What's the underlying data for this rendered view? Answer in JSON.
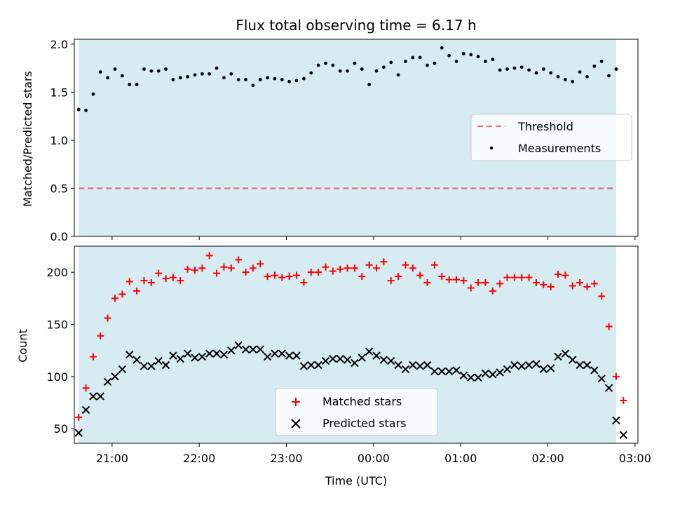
{
  "title": "Flux total observing time = 6.17 h",
  "colors": {
    "band": "#add8e6",
    "threshold": "#ff0000",
    "matched": "#ff0000",
    "predicted": "#000000",
    "measurement": "#000000"
  },
  "chart_data": [
    {
      "type": "scatter",
      "xlabel": "",
      "ylabel": "Matched/Predicted stars",
      "xlim": [
        "20:34",
        "03:02"
      ],
      "ylim": [
        0,
        2.05
      ],
      "yticks": [
        "0.0",
        "0.5",
        "1.0",
        "1.5",
        "2.0"
      ],
      "observing_window": [
        "20:37",
        "02:47"
      ],
      "threshold": 0.5,
      "legend": {
        "placement": "center-right",
        "entries": [
          "Threshold",
          "Measurements"
        ]
      },
      "series": [
        {
          "name": "Measurements",
          "x": [
            "20:37",
            "20:42",
            "20:47",
            "20:52",
            "20:57",
            "21:02",
            "21:07",
            "21:12",
            "21:17",
            "21:22",
            "21:27",
            "21:32",
            "21:37",
            "21:42",
            "21:47",
            "21:52",
            "21:57",
            "22:02",
            "22:07",
            "22:12",
            "22:17",
            "22:22",
            "22:27",
            "22:32",
            "22:37",
            "22:42",
            "22:47",
            "22:52",
            "22:57",
            "23:02",
            "23:07",
            "23:12",
            "23:17",
            "23:22",
            "23:27",
            "23:32",
            "23:37",
            "23:42",
            "23:47",
            "23:52",
            "23:57",
            "00:02",
            "00:07",
            "00:12",
            "00:17",
            "00:22",
            "00:27",
            "00:32",
            "00:37",
            "00:42",
            "00:47",
            "00:52",
            "00:57",
            "01:02",
            "01:07",
            "01:12",
            "01:17",
            "01:22",
            "01:27",
            "01:32",
            "01:37",
            "01:42",
            "01:47",
            "01:52",
            "01:57",
            "02:02",
            "02:07",
            "02:12",
            "02:17",
            "02:22",
            "02:27",
            "02:32",
            "02:37",
            "02:42",
            "02:47"
          ],
          "values": [
            1.32,
            1.31,
            1.48,
            1.71,
            1.65,
            1.74,
            1.67,
            1.58,
            1.58,
            1.74,
            1.72,
            1.72,
            1.74,
            1.63,
            1.65,
            1.66,
            1.68,
            1.69,
            1.69,
            1.75,
            1.65,
            1.69,
            1.63,
            1.63,
            1.57,
            1.63,
            1.65,
            1.64,
            1.63,
            1.61,
            1.62,
            1.64,
            1.7,
            1.78,
            1.8,
            1.78,
            1.72,
            1.72,
            1.8,
            1.74,
            1.58,
            1.72,
            1.76,
            1.81,
            1.68,
            1.82,
            1.86,
            1.86,
            1.78,
            1.8,
            1.96,
            1.88,
            1.82,
            1.9,
            1.89,
            1.87,
            1.82,
            1.84,
            1.73,
            1.74,
            1.75,
            1.76,
            1.73,
            1.7,
            1.74,
            1.7,
            1.66,
            1.63,
            1.61,
            1.71,
            1.66,
            1.77,
            1.82,
            1.67,
            1.74
          ]
        }
      ]
    },
    {
      "type": "scatter",
      "xlabel": "Time (UTC)",
      "ylabel": "Count",
      "xlim": [
        "20:34",
        "03:02"
      ],
      "ylim": [
        36,
        225
      ],
      "xticks": [
        "21:00",
        "22:00",
        "23:00",
        "00:00",
        "01:00",
        "02:00",
        "03:00"
      ],
      "yticks": [
        "50",
        "100",
        "150",
        "200"
      ],
      "observing_window": [
        "20:37",
        "02:47"
      ],
      "legend": {
        "placement": "lower-center",
        "entries": [
          "Matched stars",
          "Predicted stars"
        ]
      },
      "series": [
        {
          "name": "Matched stars",
          "x": [
            "20:37",
            "20:42",
            "20:47",
            "20:52",
            "20:57",
            "21:02",
            "21:07",
            "21:12",
            "21:17",
            "21:22",
            "21:27",
            "21:32",
            "21:37",
            "21:42",
            "21:47",
            "21:52",
            "21:57",
            "22:02",
            "22:07",
            "22:12",
            "22:17",
            "22:22",
            "22:27",
            "22:32",
            "22:37",
            "22:42",
            "22:47",
            "22:52",
            "22:57",
            "23:02",
            "23:07",
            "23:12",
            "23:17",
            "23:22",
            "23:27",
            "23:32",
            "23:37",
            "23:42",
            "23:47",
            "23:52",
            "23:57",
            "00:02",
            "00:07",
            "00:12",
            "00:17",
            "00:22",
            "00:27",
            "00:32",
            "00:37",
            "00:42",
            "00:47",
            "00:52",
            "00:57",
            "01:02",
            "01:07",
            "01:12",
            "01:17",
            "01:22",
            "01:27",
            "01:32",
            "01:37",
            "01:42",
            "01:47",
            "01:52",
            "01:57",
            "02:02",
            "02:07",
            "02:12",
            "02:17",
            "02:22",
            "02:27",
            "02:32",
            "02:37",
            "02:42",
            "02:47"
          ],
          "values": [
            61,
            89,
            119,
            139,
            156,
            175,
            179,
            191,
            182,
            192,
            190,
            199,
            194,
            195,
            192,
            203,
            202,
            204,
            216,
            199,
            205,
            204,
            212,
            200,
            204,
            208,
            196,
            197,
            195,
            196,
            197,
            190,
            200,
            200,
            205,
            201,
            203,
            204,
            204,
            196,
            207,
            204,
            210,
            192,
            196,
            207,
            204,
            197,
            190,
            207,
            196,
            193,
            193,
            192,
            185,
            190,
            190,
            182,
            189,
            195,
            195,
            195,
            195,
            190,
            188,
            186,
            198,
            197,
            187,
            190,
            186,
            189,
            177,
            148,
            100
          ]
        },
        {
          "name": "Predicted stars",
          "x": [
            "20:37",
            "20:42",
            "20:47",
            "20:52",
            "20:57",
            "21:02",
            "21:07",
            "21:12",
            "21:17",
            "21:22",
            "21:27",
            "21:32",
            "21:37",
            "21:42",
            "21:47",
            "21:52",
            "21:57",
            "22:02",
            "22:07",
            "22:12",
            "22:17",
            "22:22",
            "22:27",
            "22:32",
            "22:37",
            "22:42",
            "22:47",
            "22:52",
            "22:57",
            "23:02",
            "23:07",
            "23:12",
            "23:17",
            "23:22",
            "23:27",
            "23:32",
            "23:37",
            "23:42",
            "23:47",
            "23:52",
            "23:57",
            "00:02",
            "00:07",
            "00:12",
            "00:17",
            "00:22",
            "00:27",
            "00:32",
            "00:37",
            "00:42",
            "00:47",
            "00:52",
            "00:57",
            "01:02",
            "01:07",
            "01:12",
            "01:17",
            "01:22",
            "01:27",
            "01:32",
            "01:37",
            "01:42",
            "01:47",
            "01:52",
            "01:57",
            "02:02",
            "02:07",
            "02:12",
            "02:17",
            "02:22",
            "02:27",
            "02:32",
            "02:37",
            "02:42",
            "02:47"
          ],
          "values": [
            46,
            68,
            81,
            81,
            95,
            100,
            107,
            121,
            116,
            110,
            110,
            115,
            111,
            120,
            117,
            122,
            118,
            119,
            122,
            122,
            121,
            125,
            130,
            126,
            126,
            126,
            119,
            122,
            122,
            120,
            120,
            110,
            111,
            111,
            115,
            117,
            117,
            116,
            113,
            118,
            124,
            120,
            116,
            115,
            111,
            107,
            111,
            110,
            111,
            105,
            105,
            105,
            106,
            101,
            99,
            99,
            103,
            102,
            104,
            107,
            111,
            110,
            111,
            112,
            107,
            108,
            119,
            122,
            116,
            111,
            111,
            106,
            98,
            89,
            58
          ]
        }
      ],
      "edge_points": {
        "time": "02:52",
        "matched": 77,
        "predicted": 44
      }
    }
  ]
}
